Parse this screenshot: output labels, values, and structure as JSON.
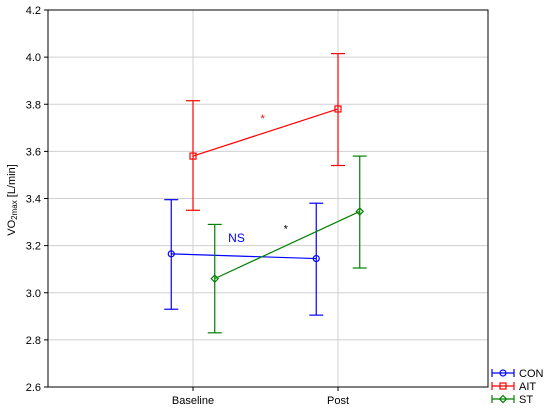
{
  "chart_data": {
    "type": "line",
    "title": "",
    "xlabel": "",
    "ylabel_main": "VO",
    "ylabel_sub": "2max",
    "ylabel_unit": " [L/min]",
    "categories": [
      "Baseline",
      "Post"
    ],
    "ylim": [
      2.6,
      4.2
    ],
    "yticks": [
      "2.6",
      "2.8",
      "3.0",
      "3.2",
      "3.4",
      "3.6",
      "3.8",
      "4.0",
      "4.2"
    ],
    "grid": true,
    "legend_position": "bottom-right",
    "series": [
      {
        "name": "CON",
        "color": "#0000ff",
        "marker": "circle",
        "offset": -0.15,
        "values": [
          3.165,
          3.145
        ],
        "lower": [
          2.93,
          2.905
        ],
        "upper": [
          3.395,
          3.38
        ]
      },
      {
        "name": "AIT",
        "color": "#ff0000",
        "marker": "square",
        "offset": 0.0,
        "values": [
          3.58,
          3.78
        ],
        "lower": [
          3.35,
          3.54
        ],
        "upper": [
          3.815,
          4.015
        ]
      },
      {
        "name": "ST",
        "color": "#008000",
        "marker": "diamond",
        "offset": 0.15,
        "values": [
          3.06,
          3.345
        ],
        "lower": [
          2.83,
          3.105
        ],
        "upper": [
          3.29,
          3.58
        ]
      }
    ],
    "annotations": [
      {
        "text": "NS",
        "color": "#0000ff",
        "x": 0.3,
        "y": 3.215,
        "size": 12
      },
      {
        "text": "*",
        "color": "#ff0000",
        "x": 0.48,
        "y": 3.725,
        "size": 11
      },
      {
        "text": "*",
        "color": "#000000",
        "x": 0.64,
        "y": 3.255,
        "size": 11
      }
    ]
  }
}
